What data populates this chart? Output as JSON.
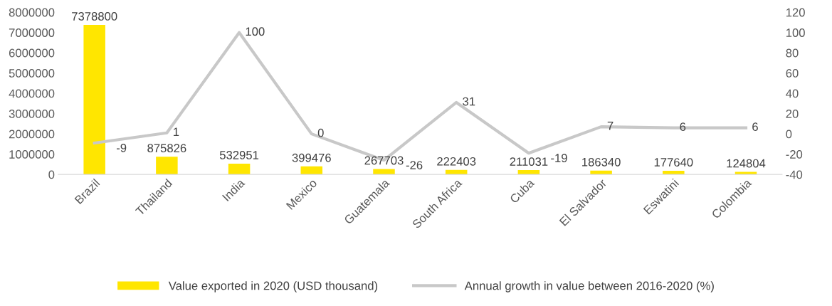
{
  "chart_data": {
    "type": "bar",
    "categories": [
      "Brazil",
      "Thailand",
      "India",
      "Mexico",
      "Guatemala",
      "South Africa",
      "Cuba",
      "El Salvador",
      "Eswatini",
      "Colombia"
    ],
    "series": [
      {
        "name": "Value exported in 2020 (USD thousand)",
        "type": "bar",
        "color": "#ffe600",
        "values": [
          7378800,
          875826,
          532951,
          399476,
          267703,
          222403,
          211031,
          186340,
          177640,
          124804
        ]
      },
      {
        "name": "Annual growth in value between 2016-2020 (%)",
        "type": "line",
        "axis": "y2",
        "color": "#c8c8c8",
        "values": [
          -9,
          1,
          100,
          0,
          -26,
          31,
          -19,
          7,
          6,
          6
        ]
      }
    ],
    "ylim": [
      0,
      8000000
    ],
    "yticks": [
      0,
      1000000,
      2000000,
      3000000,
      4000000,
      5000000,
      6000000,
      7000000,
      8000000
    ],
    "y2lim": [
      -40,
      120
    ],
    "y2ticks": [
      -40,
      -20,
      0,
      20,
      40,
      60,
      80,
      100,
      120
    ],
    "data_labels": true,
    "legend": "bottom",
    "grid": false
  }
}
